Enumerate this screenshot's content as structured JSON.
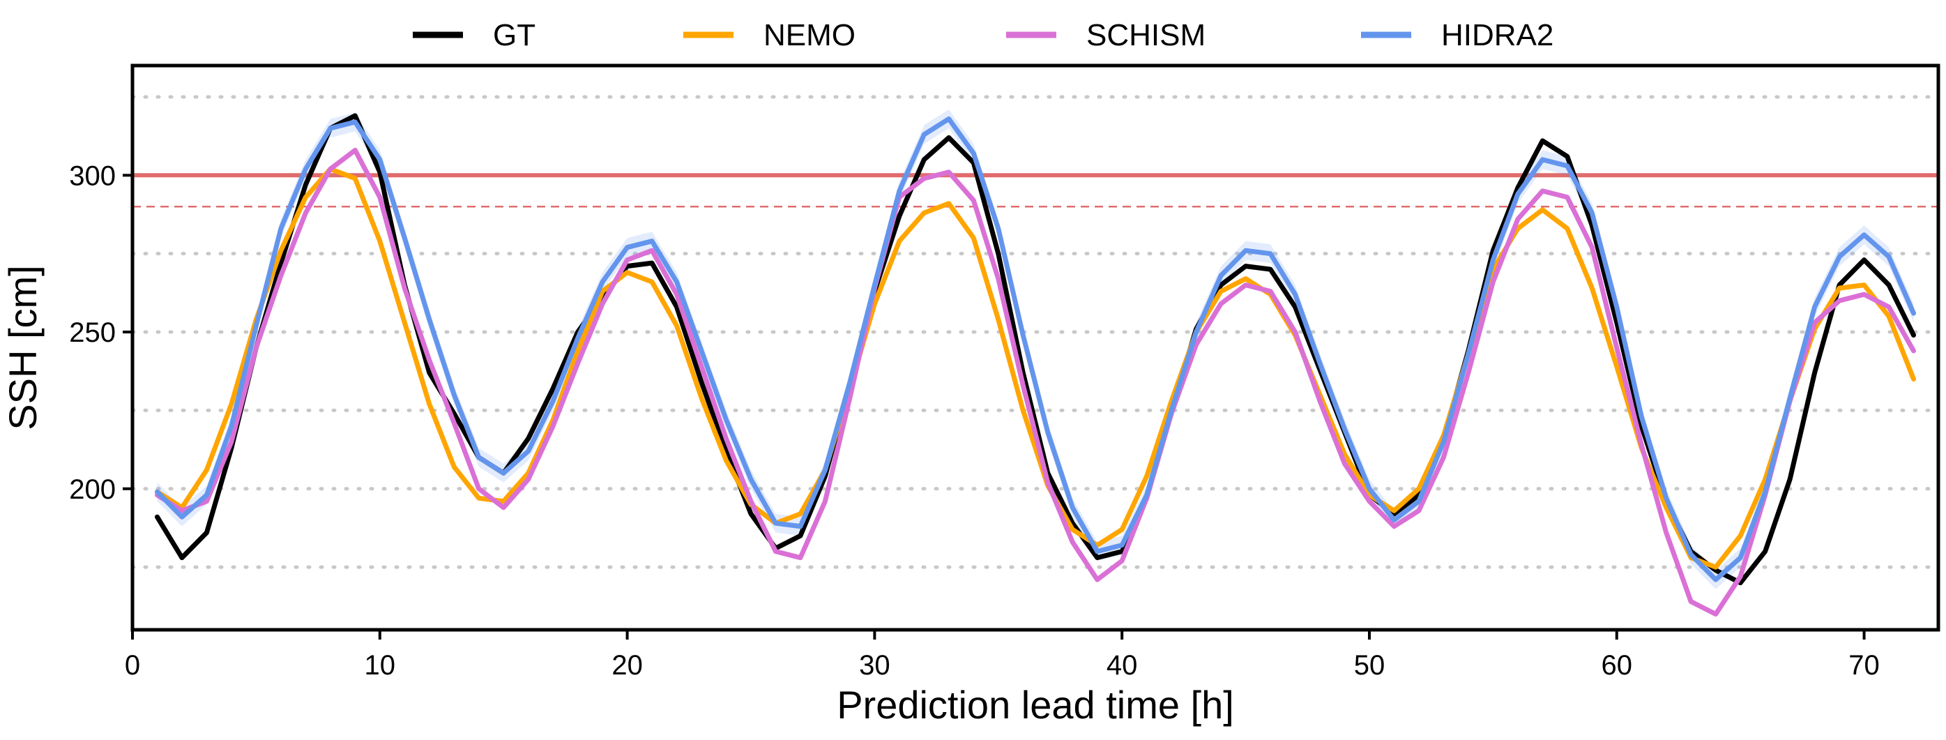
{
  "chart_data": {
    "type": "line",
    "title": "",
    "xlabel": "Prediction lead time [h]",
    "ylabel": "SSH [cm]",
    "xlim": [
      0,
      73
    ],
    "ylim": [
      155,
      335
    ],
    "xticks": [
      0,
      10,
      20,
      30,
      40,
      50,
      60,
      70
    ],
    "yticks": [
      200,
      250,
      300
    ],
    "grid": "horizontal dotted at 175, 200, 225, 250, 275, 325",
    "legend": "top, outside plot, horizontal",
    "reference_lines": [
      {
        "y": 300,
        "style": "solid",
        "color": "#e06c6c"
      },
      {
        "y": 290,
        "style": "dashed",
        "color": "#e06c6c"
      }
    ],
    "x": [
      1,
      2,
      3,
      4,
      5,
      6,
      7,
      8,
      9,
      10,
      11,
      12,
      13,
      14,
      15,
      16,
      17,
      18,
      19,
      20,
      21,
      22,
      23,
      24,
      25,
      26,
      27,
      28,
      29,
      30,
      31,
      32,
      33,
      34,
      35,
      36,
      37,
      38,
      39,
      40,
      41,
      42,
      43,
      44,
      45,
      46,
      47,
      48,
      49,
      50,
      51,
      52,
      53,
      54,
      55,
      56,
      57,
      58,
      59,
      60,
      61,
      62,
      63,
      64,
      65,
      66,
      67,
      68,
      69,
      70,
      71,
      72
    ],
    "series": [
      {
        "name": "GT",
        "color": "#000000",
        "values": [
          191,
          178,
          186,
          213,
          245,
          272,
          297,
          315,
          319,
          301,
          265,
          237,
          224,
          210,
          205,
          216,
          232,
          250,
          261,
          271,
          272,
          258,
          234,
          212,
          192,
          181,
          185,
          204,
          233,
          263,
          287,
          305,
          312,
          304,
          275,
          237,
          205,
          189,
          178,
          180,
          197,
          225,
          251,
          265,
          271,
          270,
          258,
          238,
          218,
          198,
          192,
          198,
          216,
          244,
          276,
          296,
          311,
          306,
          284,
          253,
          220,
          196,
          180,
          174,
          170,
          180,
          203,
          237,
          265,
          273,
          265,
          249
        ]
      },
      {
        "name": "NEMO",
        "color": "#ffa500",
        "values": [
          199,
          194,
          206,
          227,
          254,
          276,
          293,
          302,
          299,
          279,
          253,
          227,
          207,
          197,
          196,
          205,
          222,
          244,
          263,
          269,
          266,
          252,
          229,
          209,
          195,
          189,
          192,
          206,
          232,
          259,
          279,
          288,
          291,
          280,
          254,
          225,
          201,
          187,
          182,
          187,
          204,
          228,
          250,
          263,
          267,
          262,
          249,
          230,
          211,
          198,
          193,
          200,
          217,
          243,
          270,
          283,
          289,
          283,
          264,
          239,
          213,
          194,
          178,
          175,
          185,
          203,
          228,
          251,
          264,
          265,
          255,
          235
        ]
      },
      {
        "name": "SCHISM",
        "color": "#da70d6",
        "values": [
          198,
          193,
          196,
          215,
          245,
          268,
          288,
          302,
          308,
          293,
          264,
          241,
          221,
          200,
          194,
          203,
          220,
          240,
          259,
          273,
          276,
          262,
          239,
          216,
          196,
          180,
          178,
          196,
          229,
          264,
          293,
          299,
          301,
          292,
          267,
          233,
          202,
          183,
          171,
          177,
          197,
          224,
          246,
          259,
          265,
          263,
          250,
          228,
          208,
          196,
          188,
          193,
          210,
          237,
          266,
          286,
          295,
          293,
          277,
          245,
          214,
          186,
          164,
          160,
          172,
          198,
          228,
          253,
          260,
          262,
          258,
          244
        ]
      },
      {
        "name": "HIDRA2",
        "color": "#6495ed",
        "values": [
          199,
          191,
          198,
          220,
          252,
          283,
          302,
          315,
          317,
          305,
          280,
          254,
          230,
          210,
          205,
          212,
          228,
          248,
          266,
          277,
          279,
          266,
          244,
          222,
          203,
          189,
          188,
          206,
          234,
          265,
          295,
          313,
          318,
          307,
          283,
          249,
          218,
          194,
          180,
          182,
          198,
          225,
          250,
          268,
          276,
          275,
          262,
          240,
          219,
          200,
          190,
          196,
          215,
          243,
          273,
          294,
          305,
          303,
          288,
          258,
          223,
          197,
          179,
          171,
          178,
          199,
          229,
          258,
          274,
          281,
          274,
          256
        ]
      }
    ]
  }
}
